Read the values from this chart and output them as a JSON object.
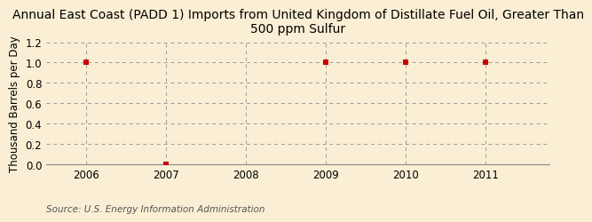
{
  "title_line1": "Annual East Coast (PADD 1) Imports from United Kingdom of Distillate Fuel Oil, Greater Than",
  "title_line2": "500 ppm Sulfur",
  "ylabel": "Thousand Barrels per Day",
  "source": "Source: U.S. Energy Information Administration",
  "background_color": "#faefd4",
  "plot_bg_color": "#faefd4",
  "x_data": [
    2006,
    2007,
    2008,
    2009,
    2010,
    2011
  ],
  "y_data": [
    1.0,
    0.0,
    null,
    1.0,
    1.0,
    1.0
  ],
  "xlim": [
    2005.5,
    2011.8
  ],
  "ylim": [
    0.0,
    1.2
  ],
  "yticks": [
    0.0,
    0.2,
    0.4,
    0.6,
    0.8,
    1.0,
    1.2
  ],
  "xticks": [
    2006,
    2007,
    2008,
    2009,
    2010,
    2011
  ],
  "marker_color": "#cc0000",
  "marker_size": 5,
  "grid_color": "#999999",
  "grid_style": "--",
  "title_fontsize": 10,
  "axis_label_fontsize": 8.5,
  "tick_fontsize": 8.5,
  "source_fontsize": 7.5
}
